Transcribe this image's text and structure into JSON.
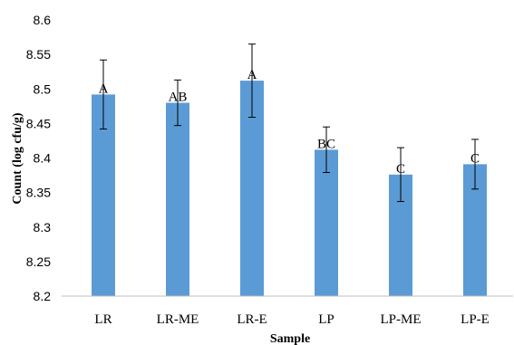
{
  "chart_data": {
    "type": "bar",
    "categories": [
      "LR",
      "LR-ME",
      "LR-E",
      "LP",
      "LP-ME",
      "LP-E"
    ],
    "values": [
      8.492,
      8.48,
      8.512,
      8.412,
      8.376,
      8.391
    ],
    "error": [
      0.05,
      0.033,
      0.053,
      0.033,
      0.039,
      0.036
    ],
    "annotations": [
      "A",
      "AB",
      "A",
      "BC",
      "C",
      "C"
    ],
    "xlabel": "Sample",
    "ylabel": "Count (log cfu/g)",
    "ylim": [
      8.2,
      8.6
    ],
    "yticks": [
      "8.2",
      "8.25",
      "8.3",
      "8.35",
      "8.4",
      "8.45",
      "8.5",
      "8.55",
      "8.6"
    ],
    "grid": false,
    "bar_color": "#5b9bd5"
  }
}
